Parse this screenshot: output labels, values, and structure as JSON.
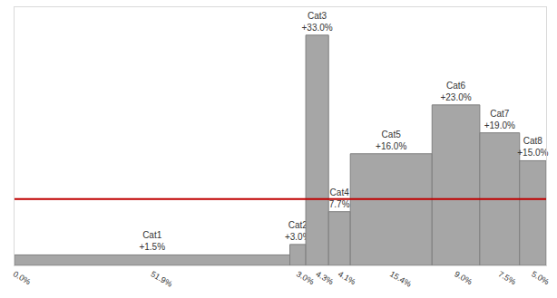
{
  "chart_data": {
    "type": "bar",
    "categories": [
      "Cat1",
      "Cat2",
      "Cat3",
      "Cat4",
      "Cat5",
      "Cat6",
      "Cat7",
      "Cat8"
    ],
    "values": [
      1.5,
      3.0,
      33.0,
      7.7,
      16.0,
      23.0,
      19.0,
      15.0
    ],
    "value_labels": [
      "+1.5%",
      "+3.0%",
      "+33.0%",
      "7.7%",
      "+16.0%",
      "+23.0%",
      "+19.0%",
      "+15.0%"
    ],
    "widths": [
      51.9,
      3.0,
      4.3,
      4.1,
      15.4,
      9.0,
      7.5,
      5.0
    ],
    "width_labels": [
      "51.9%",
      "3.0%",
      "4.3%",
      "4.1%",
      "15.4%",
      "9.0%",
      "7.5%",
      "5.0%"
    ],
    "x_start": 0,
    "x_start_label": "0.0%",
    "xlim": [
      0,
      100.2
    ],
    "ylim": [
      0,
      37
    ],
    "yticks": [],
    "color": "#a6a6a6",
    "data_labels": true,
    "tick_labels": "x",
    "grid": false,
    "reference_line": {
      "value": 9.5,
      "color": "#c00000"
    }
  }
}
